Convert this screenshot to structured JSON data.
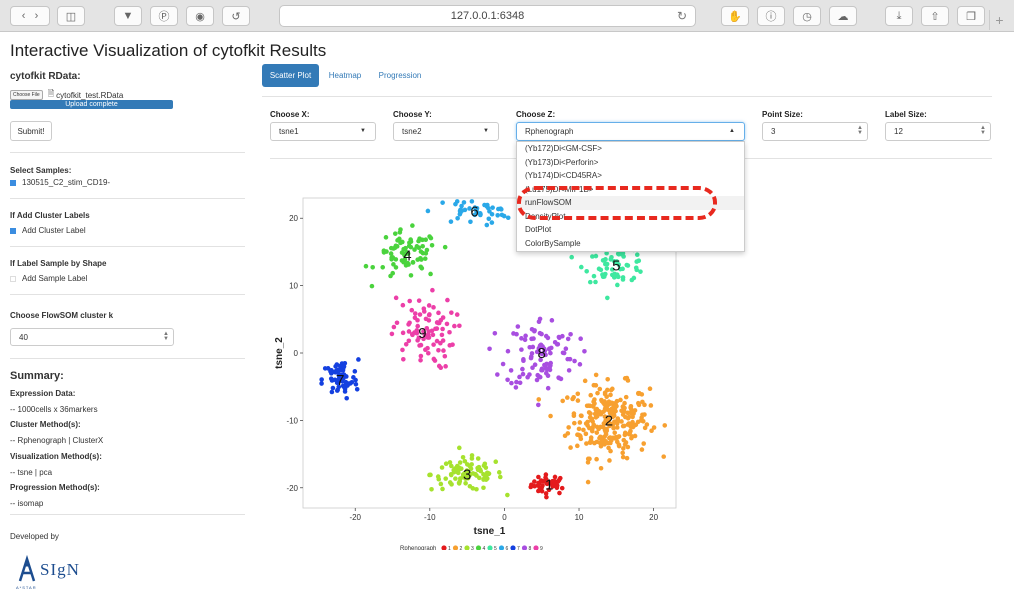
{
  "browser": {
    "url": "127.0.0.1:6348"
  },
  "page": {
    "title": "Interactive Visualization of cytofkit Results"
  },
  "sidebar": {
    "rdata_label": "cytofkit RData:",
    "choose_file_label": "Choose File",
    "file_name": "cytofkit_test.RData",
    "upload_status": "Upload complete",
    "submit_label": "Submit!",
    "select_samples_label": "Select Samples:",
    "sample_name": "130515_C2_stim_CD19-",
    "cluster_labels_heading": "If Add Cluster Labels",
    "add_cluster_label": "Add Cluster Label",
    "label_sample_heading": "If Label Sample by Shape",
    "add_sample_label": "Add Sample Label",
    "flowsom_label": "Choose FlowSOM cluster k",
    "flowsom_value": "40",
    "summary_heading": "Summary:",
    "summary_lines": [
      "Expression Data:",
      "-- 1000cells x 36markers",
      "Cluster Method(s):",
      "-- Rphenograph | ClusterX",
      "Visualization Method(s):",
      "-- tsne | pca",
      "Progression Method(s):",
      "-- isomap"
    ],
    "developed_by": "Developed by",
    "logo_text": "SIgN",
    "logo_subtext": "A*STAR"
  },
  "tabs": [
    {
      "label": "Scatter Plot",
      "active": true
    },
    {
      "label": "Heatmap",
      "active": false
    },
    {
      "label": "Progression",
      "active": false
    }
  ],
  "controls": {
    "x_label": "Choose X:",
    "x_value": "tsne1",
    "y_label": "Choose Y:",
    "y_value": "tsne2",
    "z_label": "Choose Z:",
    "z_value": "Rphenograph",
    "point_size_label": "Point Size:",
    "point_size_value": "3",
    "label_size_label": "Label Size:",
    "label_size_value": "12"
  },
  "dropdown_options": [
    "(Yb172)Di<GM-CSF>",
    "(Yb173)Di<Perforin>",
    "(Yb174)Di<CD45RA>",
    "(Lu175)Di<MIP1B>",
    "runFlowSOM",
    "DensityPlot",
    "DotPlot",
    "ColorBySample"
  ],
  "dropdown_highlighted_index": 4,
  "colors": {
    "accent": "#337ab7",
    "annotation": "#e8291f"
  },
  "chart_data": {
    "type": "scatter",
    "xlabel": "tsne_1",
    "ylabel": "tsne_2",
    "xlim": [
      -27,
      23
    ],
    "ylim": [
      -23,
      23
    ],
    "xticks": [
      -20,
      -10,
      0,
      10,
      20
    ],
    "yticks": [
      -20,
      -10,
      0,
      10,
      20
    ],
    "legend_title": "Rphenograph",
    "legend_position": "bottom",
    "clusters": [
      {
        "name": "1",
        "color": "#e41a1c",
        "cx": 6,
        "cy": -19.5,
        "sx": 2,
        "sy": 1.2,
        "n": 40
      },
      {
        "name": "2",
        "color": "#f7a030",
        "cx": 14,
        "cy": -10,
        "sx": 4.5,
        "sy": 4.5,
        "n": 260
      },
      {
        "name": "3",
        "color": "#a6e22e",
        "cx": -5,
        "cy": -18,
        "sx": 4,
        "sy": 2,
        "n": 90
      },
      {
        "name": "4",
        "color": "#4ad33d",
        "cx": -13,
        "cy": 14.5,
        "sx": 3.5,
        "sy": 3,
        "n": 75
      },
      {
        "name": "5",
        "color": "#3ee8a0",
        "cx": 15,
        "cy": 13,
        "sx": 3.5,
        "sy": 2,
        "n": 60
      },
      {
        "name": "6",
        "color": "#2aa8e8",
        "cx": -4,
        "cy": 21,
        "sx": 4.5,
        "sy": 1.5,
        "n": 45
      },
      {
        "name": "7",
        "color": "#1440e0",
        "cx": -22,
        "cy": -4,
        "sx": 2,
        "sy": 2.5,
        "n": 65
      },
      {
        "name": "8",
        "color": "#a84ee0",
        "cx": 5,
        "cy": 0,
        "sx": 4,
        "sy": 4.5,
        "n": 100
      },
      {
        "name": "9",
        "color": "#ec3fa8",
        "cx": -11,
        "cy": 3,
        "sx": 3.5,
        "sy": 4.5,
        "n": 85
      }
    ]
  }
}
